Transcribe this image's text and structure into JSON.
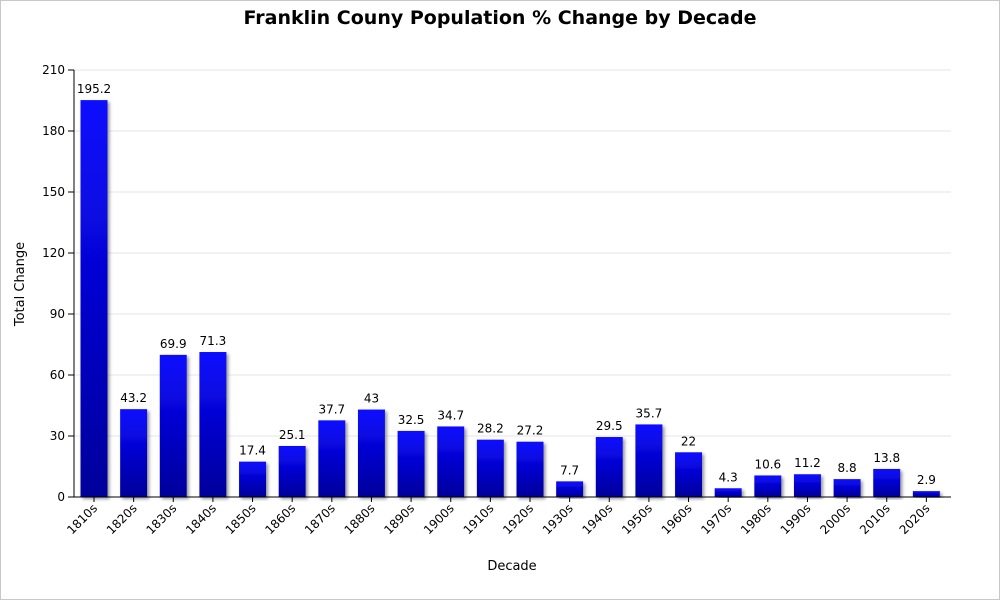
{
  "chart_data": {
    "type": "bar",
    "title": "Franklin Couny Population % Change by Decade",
    "xlabel": "Decade",
    "ylabel": "Total Change",
    "ylim": [
      0,
      210
    ],
    "yticks": [
      0,
      30,
      60,
      90,
      120,
      150,
      180,
      210
    ],
    "grid": true,
    "legend": "none",
    "categories": [
      "1810s",
      "1820s",
      "1830s",
      "1840s",
      "1850s",
      "1860s",
      "1870s",
      "1880s",
      "1890s",
      "1900s",
      "1910s",
      "1920s",
      "1930s",
      "1940s",
      "1950s",
      "1960s",
      "1970s",
      "1980s",
      "1990s",
      "2000s",
      "2010s",
      "2020s"
    ],
    "values": [
      195.2,
      43.2,
      69.9,
      71.3,
      17.4,
      25.1,
      37.7,
      43,
      32.5,
      34.7,
      28.2,
      27.2,
      7.7,
      29.5,
      35.7,
      22,
      4.3,
      10.6,
      11.2,
      8.8,
      13.8,
      2.9
    ],
    "colors": {
      "bar_top": "#0a0aff",
      "bar_bottom": "#00009a",
      "bar_shadow": "#9a9a9a"
    }
  }
}
